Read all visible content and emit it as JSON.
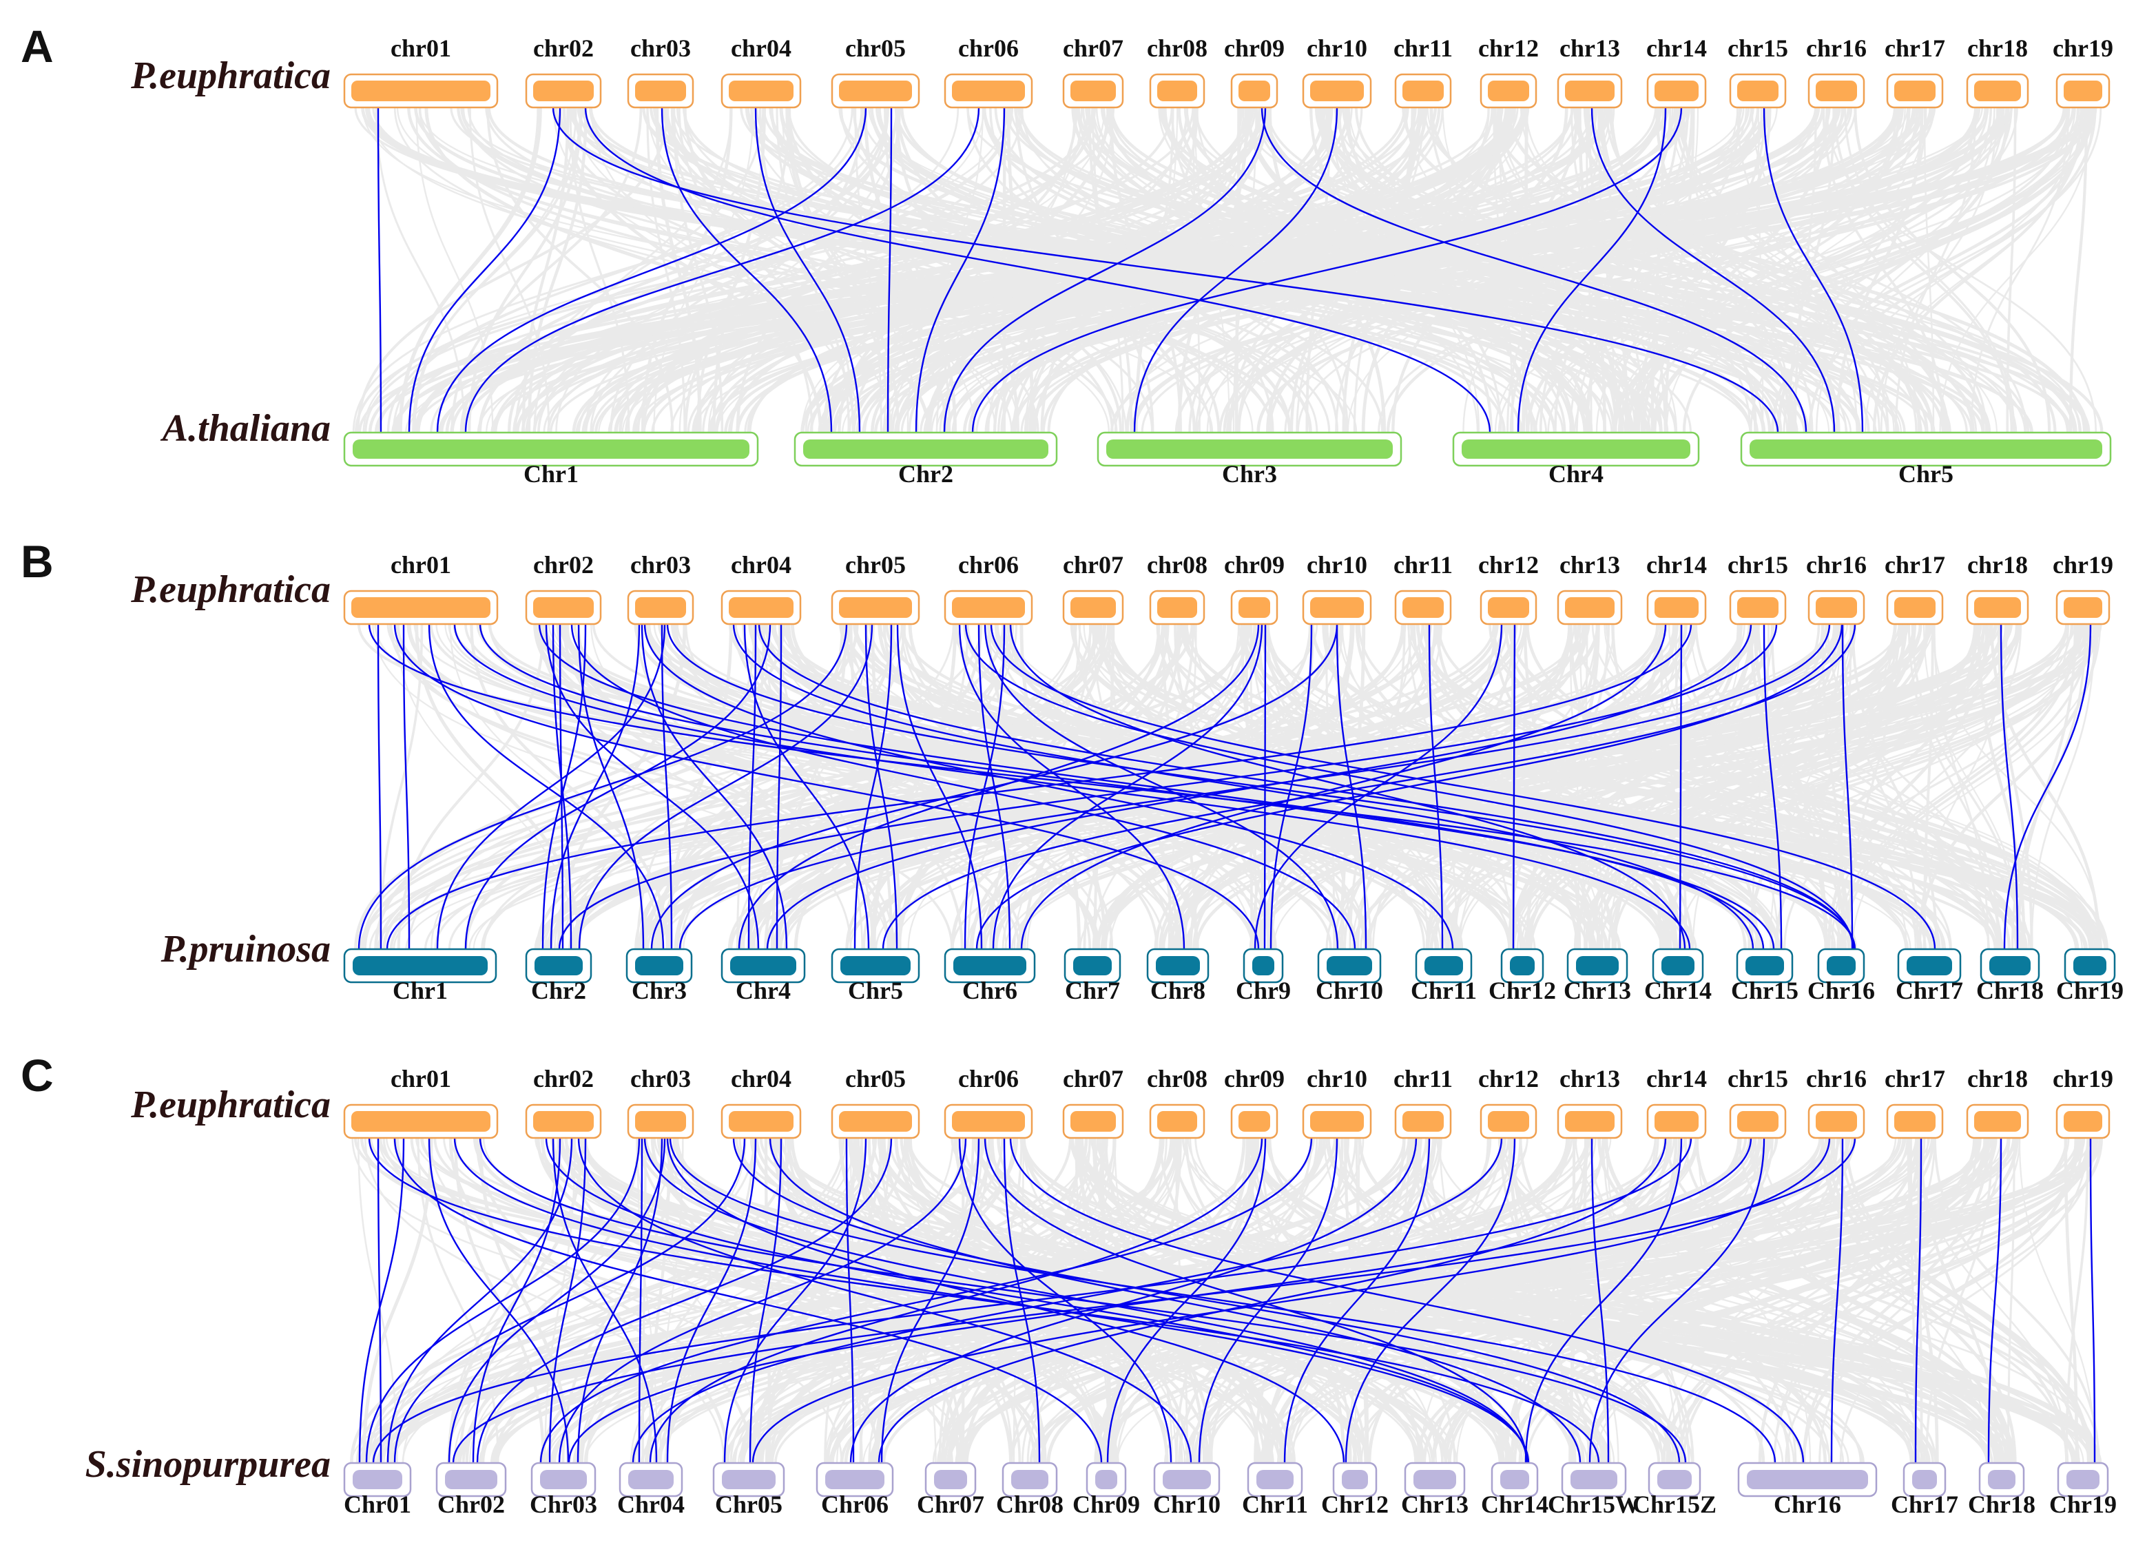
{
  "colors": {
    "background_link": "#d9d9d9",
    "highlight_link": "#0000ee",
    "euphratica_fill": "#fdaa52",
    "euphratica_border": "#f0a050",
    "thaliana_fill": "#8ad95e",
    "thaliana_border": "#7ed05a",
    "pruinosa_fill": "#0a7a9c",
    "pruinosa_border": "#0a6f8e",
    "sinopurpurea_fill": "#bcb6dd",
    "sinopurpurea_border": "#a9a2cf"
  },
  "panels": [
    {
      "letter": "A",
      "top_species": "P.euphratica",
      "bottom_species": "A.thaliana",
      "top_chromosomes": [
        "chr01",
        "chr02",
        "chr03",
        "chr04",
        "chr05",
        "chr06",
        "chr07",
        "chr08",
        "chr09",
        "chr10",
        "chr11",
        "chr12",
        "chr13",
        "chr14",
        "chr15",
        "chr16",
        "chr17",
        "chr18",
        "chr19"
      ],
      "bottom_chromosomes": [
        "Chr1",
        "Chr2",
        "Chr3",
        "Chr4",
        "Chr5"
      ],
      "links": [
        [
          0,
          0
        ],
        [
          1,
          0
        ],
        [
          1,
          3
        ],
        [
          1,
          4
        ],
        [
          2,
          1
        ],
        [
          3,
          1
        ],
        [
          4,
          0
        ],
        [
          4,
          1
        ],
        [
          5,
          0
        ],
        [
          5,
          1
        ],
        [
          8,
          1
        ],
        [
          8,
          4
        ],
        [
          9,
          2
        ],
        [
          12,
          4
        ],
        [
          13,
          1
        ],
        [
          13,
          3
        ],
        [
          14,
          4
        ]
      ]
    },
    {
      "letter": "B",
      "top_species": "P.euphratica",
      "bottom_species": "P.pruinosa",
      "top_chromosomes": [
        "chr01",
        "chr02",
        "chr03",
        "chr04",
        "chr05",
        "chr06",
        "chr07",
        "chr08",
        "chr09",
        "chr10",
        "chr11",
        "chr12",
        "chr13",
        "chr14",
        "chr15",
        "chr16",
        "chr17",
        "chr18",
        "chr19"
      ],
      "bottom_chromosomes": [
        "Chr1",
        "Chr2",
        "Chr3",
        "Chr4",
        "Chr5",
        "Chr6",
        "Chr7",
        "Chr8",
        "Chr9",
        "Chr10",
        "Chr11",
        "Chr12",
        "Chr13",
        "Chr14",
        "Chr15",
        "Chr16",
        "Chr17",
        "Chr18",
        "Chr19"
      ],
      "links": [
        [
          0,
          0
        ],
        [
          0,
          0
        ],
        [
          0,
          2
        ],
        [
          0,
          13
        ],
        [
          0,
          14
        ],
        [
          0,
          15
        ],
        [
          0,
          8
        ],
        [
          1,
          1
        ],
        [
          1,
          1
        ],
        [
          1,
          1
        ],
        [
          1,
          2
        ],
        [
          1,
          3
        ],
        [
          1,
          9
        ],
        [
          1,
          14
        ],
        [
          2,
          2
        ],
        [
          2,
          1
        ],
        [
          2,
          0
        ],
        [
          2,
          3
        ],
        [
          2,
          15
        ],
        [
          2,
          10
        ],
        [
          3,
          3
        ],
        [
          3,
          3
        ],
        [
          3,
          4
        ],
        [
          3,
          0
        ],
        [
          3,
          14
        ],
        [
          3,
          15
        ],
        [
          4,
          4
        ],
        [
          4,
          4
        ],
        [
          4,
          0
        ],
        [
          4,
          1
        ],
        [
          4,
          5
        ],
        [
          5,
          5
        ],
        [
          5,
          5
        ],
        [
          5,
          7
        ],
        [
          5,
          9
        ],
        [
          5,
          13
        ],
        [
          5,
          15
        ],
        [
          5,
          16
        ],
        [
          8,
          8
        ],
        [
          8,
          5
        ],
        [
          8,
          3
        ],
        [
          9,
          9
        ],
        [
          9,
          8
        ],
        [
          9,
          2
        ],
        [
          10,
          10
        ],
        [
          11,
          11
        ],
        [
          11,
          8
        ],
        [
          13,
          13
        ],
        [
          13,
          5
        ],
        [
          13,
          0
        ],
        [
          14,
          14
        ],
        [
          14,
          3
        ],
        [
          14,
          1
        ],
        [
          15,
          15
        ],
        [
          15,
          2
        ],
        [
          15,
          4
        ],
        [
          15,
          5
        ],
        [
          17,
          17
        ],
        [
          18,
          17
        ]
      ]
    },
    {
      "letter": "C",
      "top_species": "P.euphratica",
      "bottom_species": "S.sinopurpurea",
      "top_chromosomes": [
        "chr01",
        "chr02",
        "chr03",
        "chr04",
        "chr05",
        "chr06",
        "chr07",
        "chr08",
        "chr09",
        "chr10",
        "chr11",
        "chr12",
        "chr13",
        "chr14",
        "chr15",
        "chr16",
        "chr17",
        "chr18",
        "chr19"
      ],
      "bottom_chromosomes": [
        "Chr01",
        "Chr02",
        "Chr03",
        "Chr04",
        "Chr05",
        "Chr06",
        "Chr07",
        "Chr08",
        "Chr09",
        "Chr10",
        "Chr11",
        "Chr12",
        "Chr13",
        "Chr14",
        "Chr15W",
        "Chr15Z",
        "Chr16",
        "Chr17",
        "Chr18",
        "Chr19"
      ],
      "links": [
        [
          0,
          0
        ],
        [
          0,
          0
        ],
        [
          0,
          2
        ],
        [
          0,
          13
        ],
        [
          0,
          15
        ],
        [
          0,
          14
        ],
        [
          0,
          8
        ],
        [
          1,
          1
        ],
        [
          1,
          2
        ],
        [
          1,
          3
        ],
        [
          1,
          9
        ],
        [
          1,
          13
        ],
        [
          1,
          0
        ],
        [
          2,
          2
        ],
        [
          2,
          0
        ],
        [
          2,
          1
        ],
        [
          2,
          3
        ],
        [
          2,
          11
        ],
        [
          2,
          13
        ],
        [
          2,
          16
        ],
        [
          3,
          3
        ],
        [
          3,
          4
        ],
        [
          3,
          0
        ],
        [
          3,
          14
        ],
        [
          3,
          15
        ],
        [
          4,
          4
        ],
        [
          4,
          1
        ],
        [
          4,
          5
        ],
        [
          5,
          5
        ],
        [
          5,
          7
        ],
        [
          5,
          9
        ],
        [
          5,
          13
        ],
        [
          5,
          16
        ],
        [
          5,
          2
        ],
        [
          8,
          8
        ],
        [
          8,
          3
        ],
        [
          9,
          9
        ],
        [
          9,
          2
        ],
        [
          10,
          10
        ],
        [
          10,
          5
        ],
        [
          11,
          11
        ],
        [
          11,
          3
        ],
        [
          12,
          14
        ],
        [
          13,
          13
        ],
        [
          13,
          5
        ],
        [
          13,
          0
        ],
        [
          14,
          14
        ],
        [
          14,
          2
        ],
        [
          15,
          16
        ],
        [
          15,
          4
        ],
        [
          15,
          1
        ],
        [
          16,
          17
        ],
        [
          17,
          18
        ],
        [
          18,
          19
        ]
      ]
    }
  ]
}
